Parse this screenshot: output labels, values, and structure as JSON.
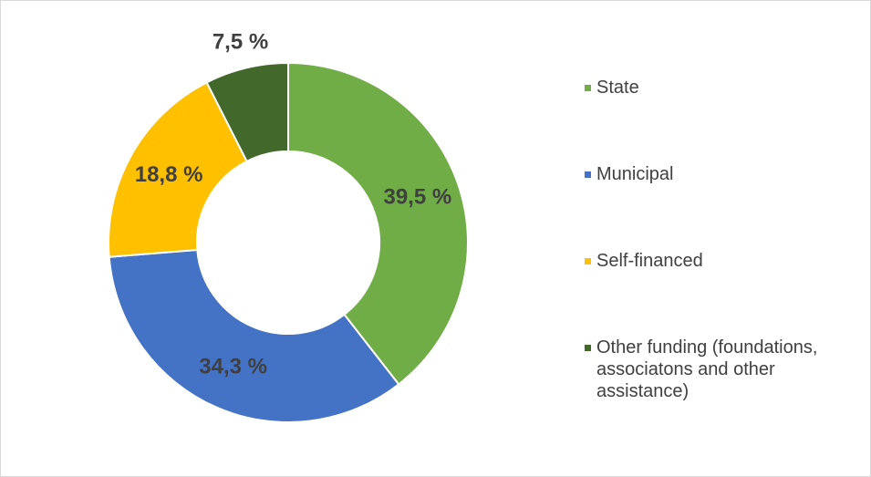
{
  "chart_data": {
    "type": "donut",
    "categories": [
      "State",
      "Municipal",
      "Self-financed",
      "Other funding (foundations, associatons and other assistance)"
    ],
    "values": [
      39.5,
      34.3,
      18.8,
      7.5
    ],
    "value_labels": [
      "39,5 %",
      "34,3 %",
      "18,8 %",
      "7,5 %"
    ],
    "colors": [
      "#70ad47",
      "#4472c4",
      "#ffc000",
      "#43682b"
    ],
    "legend": "right"
  }
}
